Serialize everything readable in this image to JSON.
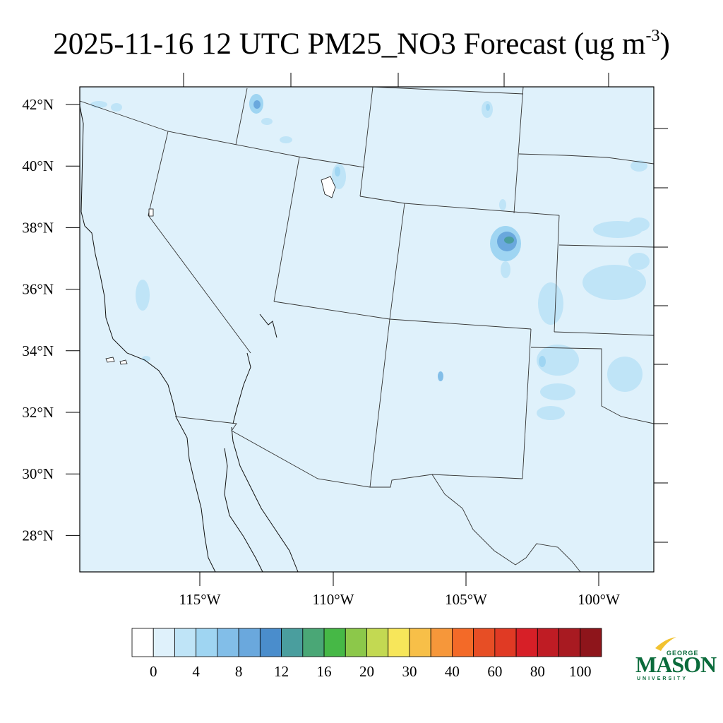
{
  "title": {
    "main": "2025-11-16 12 UTC PM25_NO3 Forecast (ug m",
    "exponent": "-3",
    "close": ")"
  },
  "map": {
    "background_color": "#dff1fb",
    "lat_labels": [
      "42°N",
      "40°N",
      "38°N",
      "36°N",
      "34°N",
      "32°N",
      "30°N",
      "28°N"
    ],
    "lon_labels": [
      "115°W",
      "110°W",
      "105°W",
      "100°W"
    ]
  },
  "colorbar": {
    "colors": [
      "#ffffff",
      "#dff1fb",
      "#bfe4f7",
      "#9fd5f2",
      "#82bee8",
      "#6aa8dd",
      "#4a8dcc",
      "#4a9e9e",
      "#4aa776",
      "#46b846",
      "#8cc84a",
      "#c3d952",
      "#f7e65a",
      "#f7bf48",
      "#f6973a",
      "#f36a28",
      "#e74e25",
      "#e03a24",
      "#d71f27",
      "#bf1c24",
      "#a81a21",
      "#8e151b"
    ],
    "labels": [
      "0",
      "4",
      "8",
      "12",
      "16",
      "20",
      "30",
      "40",
      "60",
      "80",
      "100"
    ]
  },
  "logo": {
    "top": "GEORGE",
    "main": "MASON",
    "bottom": "UNIVERSITY",
    "colors": {
      "green": "#0a6b3b",
      "gold": "#f2c230"
    }
  }
}
